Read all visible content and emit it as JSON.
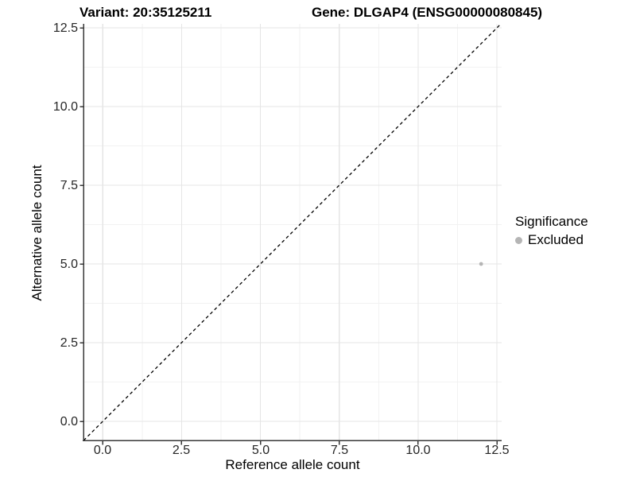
{
  "figure": {
    "titles": {
      "left": "Variant: 20:35125211",
      "right": "Gene: DLGAP4 (ENSG00000080845)"
    }
  },
  "axes": {
    "x": {
      "label": "Reference allele count",
      "ticks": [
        "0.0",
        "2.5",
        "5.0",
        "7.5",
        "10.0",
        "12.5"
      ]
    },
    "y": {
      "label": "Alternative allele count",
      "ticks": [
        "0.0",
        "2.5",
        "5.0",
        "7.5",
        "10.0",
        "12.5"
      ]
    }
  },
  "legend": {
    "title": "Significance",
    "entries": [
      {
        "label": "Excluded",
        "color": "#b5b5b5"
      }
    ]
  },
  "chart_data": {
    "type": "scatter",
    "title": "Variant: 20:35125211    Gene: DLGAP4 (ENSG00000080845)",
    "xlabel": "Reference allele count",
    "ylabel": "Alternative allele count",
    "xlim": [
      -0.65,
      12.65
    ],
    "ylim": [
      -0.6,
      12.65
    ],
    "x_ticks": [
      0,
      2.5,
      5,
      7.5,
      10,
      12.5
    ],
    "y_ticks": [
      0,
      2.5,
      5,
      7.5,
      10,
      12.5
    ],
    "grid": "major and minor, light gray on white",
    "legend_position": "right",
    "reference_line": {
      "kind": "identity y=x",
      "style": "dashed",
      "color": "#000000"
    },
    "series": [
      {
        "name": "Excluded",
        "color": "#b5b5b5",
        "marker": "circle",
        "points": [
          {
            "x": 12,
            "y": 5
          }
        ]
      }
    ]
  }
}
